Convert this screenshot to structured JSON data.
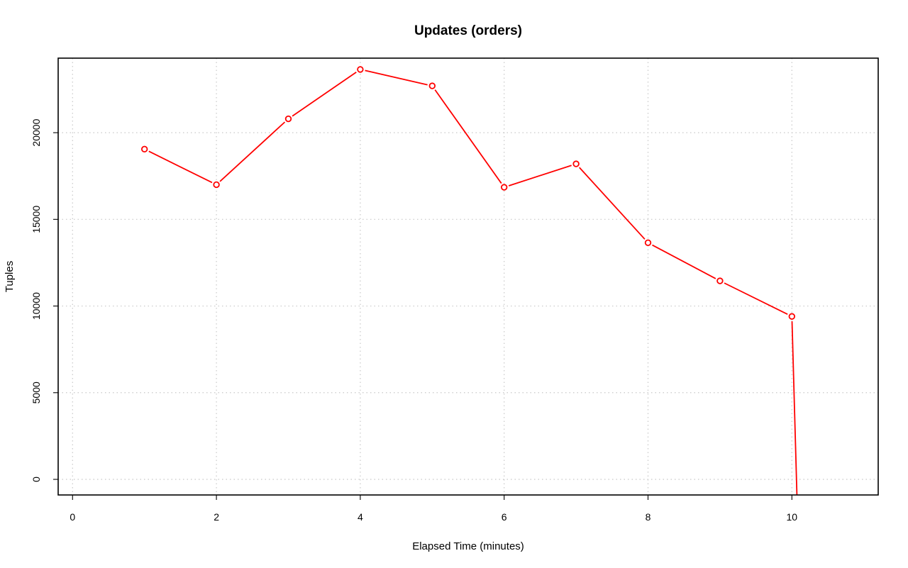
{
  "chart_data": {
    "type": "line",
    "title": "Updates (orders)",
    "xlabel": "Elapsed Time (minutes)",
    "ylabel": "Tuples",
    "xlim": [
      -0.2,
      11.2
    ],
    "ylim": [
      -900,
      24300
    ],
    "x_ticks": [
      0,
      2,
      4,
      6,
      8,
      10
    ],
    "y_ticks": [
      0,
      5000,
      10000,
      15000,
      20000
    ],
    "x_tick_labels": [
      "0",
      "2",
      "4",
      "6",
      "8",
      "10"
    ],
    "y_tick_labels": [
      "0",
      "5000",
      "10000",
      "15000",
      "20000"
    ],
    "grid": true,
    "series": [
      {
        "color": "#ff0000",
        "marker": "open-circle",
        "x": [
          1,
          2,
          3,
          4,
          5,
          6,
          7,
          8,
          9,
          10
        ],
        "y": [
          19050,
          17000,
          20800,
          23650,
          22700,
          16850,
          18200,
          13650,
          11450,
          9400
        ]
      }
    ],
    "tail_segment": {
      "from": [
        10,
        9400
      ],
      "to": [
        10.07,
        -900
      ]
    }
  }
}
